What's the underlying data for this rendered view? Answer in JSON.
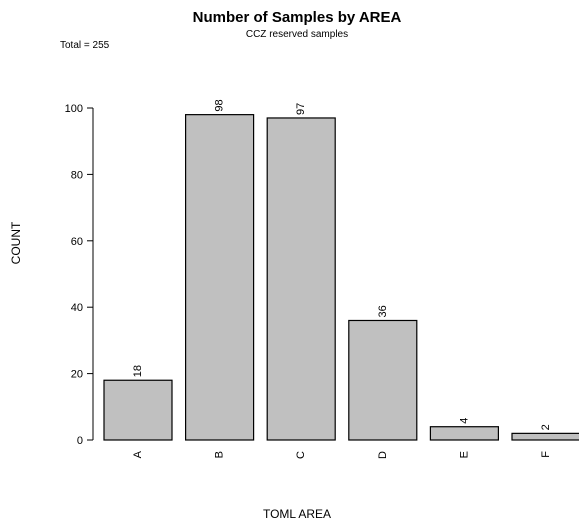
{
  "chart_data": {
    "type": "bar",
    "title": "Number of Samples by AREA",
    "subtitle": "CCZ reserved samples",
    "annotation": "Total = 255",
    "xlabel": "TOML AREA",
    "ylabel": "COUNT",
    "categories": [
      "A",
      "B",
      "C",
      "D",
      "E",
      "F"
    ],
    "values": [
      18,
      98,
      97,
      36,
      4,
      2
    ],
    "data_labels": [
      "18",
      "98",
      "97",
      "36",
      "4",
      "2"
    ],
    "ylim": [
      0,
      100
    ],
    "yticks": [
      0,
      20,
      40,
      60,
      80,
      100
    ],
    "ytick_labels": [
      "0",
      "20",
      "40",
      "60",
      "80",
      "100"
    ],
    "grid": false,
    "bar_color": "#c0c0c0",
    "bar_edge_color": "#000000"
  }
}
